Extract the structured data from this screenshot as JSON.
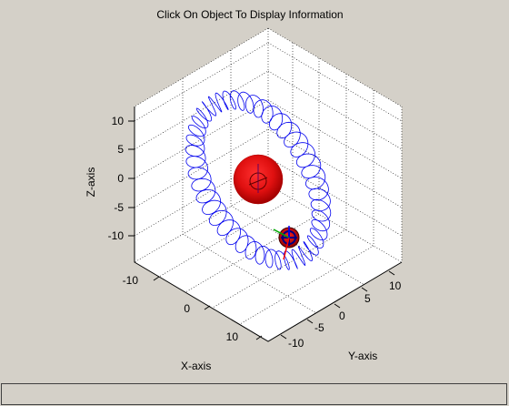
{
  "window": {
    "title": "Click On Object To Display Information",
    "info_text": ""
  },
  "axes": {
    "xlabel": "X-axis",
    "ylabel": "Y-axis",
    "zlabel": "Z-axis",
    "x_ticks": [
      "-10",
      "0",
      "10"
    ],
    "y_ticks": [
      "-10",
      "-5",
      "0",
      "5",
      "10"
    ],
    "z_ticks": [
      "10",
      "5",
      "0",
      "-5",
      "-10"
    ],
    "grid": "dotted",
    "box_color": "#ffffff"
  },
  "objects": {
    "planet": {
      "name": "large red sphere",
      "color": "#dd1111"
    },
    "satellite": {
      "name": "small red sphere",
      "color": "#cc1111"
    },
    "orbit_path": {
      "name": "blue helical orbit",
      "color": "#0000ee"
    }
  },
  "colors": {
    "background": "#d4d0c8",
    "axes_face": "#ffffff",
    "orbit": "#0000ee",
    "triad_red": "#ff0000",
    "triad_green": "#00aa00",
    "triad_blue": "#0000ff"
  }
}
